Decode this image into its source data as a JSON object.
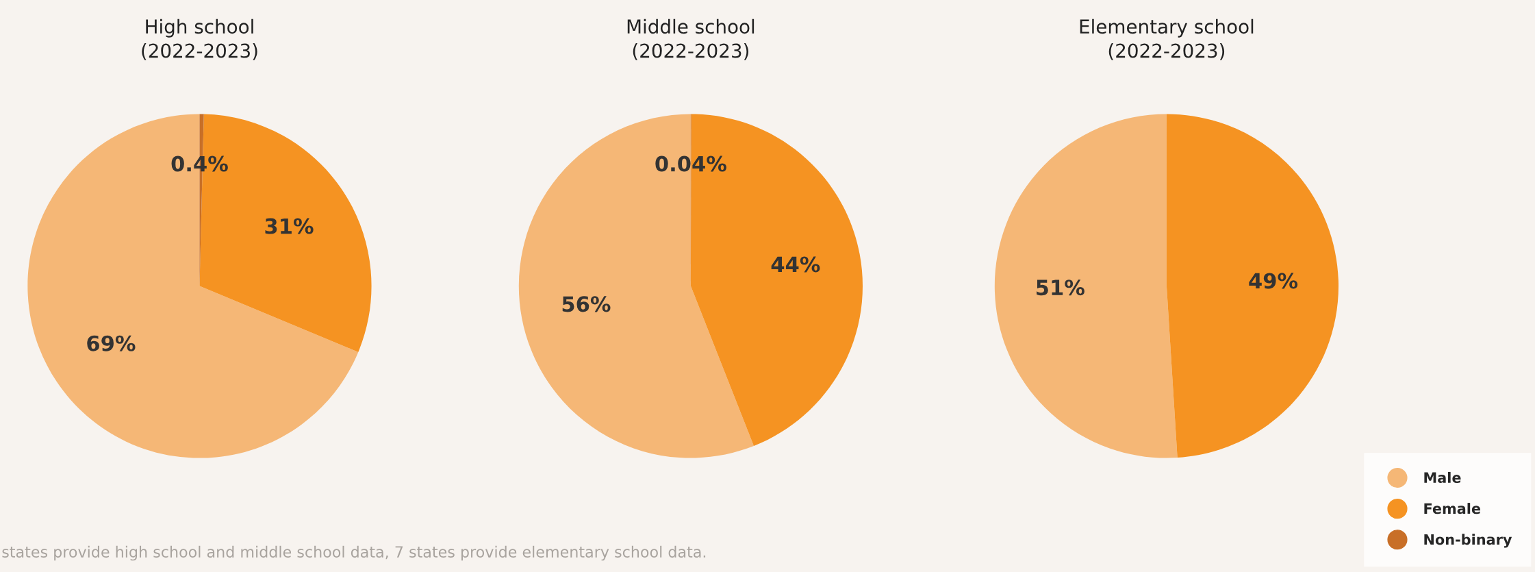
{
  "chart_data": [
    {
      "type": "pie",
      "title": "High school\n(2022-2023)",
      "categories": [
        "Male",
        "Female",
        "Non-binary"
      ],
      "values": [
        69,
        31,
        0.4
      ],
      "value_labels": [
        "69%",
        "31%",
        "0.4%"
      ],
      "colors": [
        "#f5b776",
        "#f59322",
        "#c86f27"
      ],
      "legend": "bottom right",
      "annotations": [
        "states provide high school and middle school data, 7 states provide elementary school data."
      ]
    },
    {
      "type": "pie",
      "title": "Middle school\n(2022-2023)",
      "categories": [
        null,
        null,
        null
      ],
      "values": [
        56,
        44,
        0.04
      ],
      "value_labels": [
        "56%",
        "44%",
        "0.04%"
      ],
      "colors": [
        "#f5b776",
        "#f59322",
        "#c86f27"
      ]
    },
    {
      "type": "pie",
      "title": "Elementary school\n(2022-2023)",
      "categories": [
        null,
        null
      ],
      "values": [
        51,
        49
      ],
      "value_labels": [
        "51%",
        "49%"
      ],
      "colors": [
        "#f5b776",
        "#f59322"
      ]
    }
  ]
}
